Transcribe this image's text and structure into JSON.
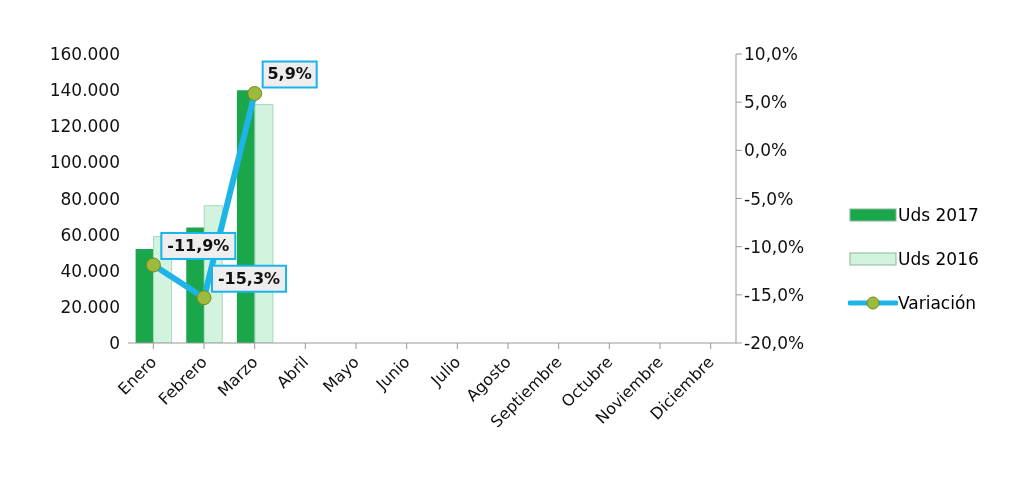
{
  "chart_data": {
    "type": "bar",
    "categories": [
      "Enero",
      "Febrero",
      "Marzo",
      "Abril",
      "Mayo",
      "Junio",
      "Julio",
      "Agosto",
      "Septiembre",
      "Octubre",
      "Noviembre",
      "Diciembre"
    ],
    "series": [
      {
        "name": "Uds 2017",
        "color": "#1aa64a",
        "values": [
          52000,
          64000,
          140000,
          null,
          null,
          null,
          null,
          null,
          null,
          null,
          null,
          null
        ]
      },
      {
        "name": "Uds 2016",
        "color": "#d2f3de",
        "values": [
          59000,
          76000,
          132000,
          null,
          null,
          null,
          null,
          null,
          null,
          null,
          null,
          null
        ]
      },
      {
        "name": "Variación",
        "type": "line",
        "axis": "y2",
        "color": "#1fb4e8",
        "marker": "circle",
        "values": [
          -11.9,
          -15.3,
          5.9,
          null,
          null,
          null,
          null,
          null,
          null,
          null,
          null,
          null
        ],
        "value_labels": [
          "-11,9%",
          "-15,3%",
          "5,9%",
          null,
          null,
          null,
          null,
          null,
          null,
          null,
          null,
          null
        ]
      }
    ],
    "ylim": [
      0,
      160000
    ],
    "yticks": [
      0,
      {
        "value": 20000,
        "label": "20.000"
      },
      {
        "value": 40000,
        "label": "40.000"
      },
      {
        "value": 60000,
        "label": "60.000"
      },
      {
        "value": 80000,
        "label": "80.000"
      },
      {
        "value": 100000,
        "label": "100.000"
      },
      {
        "value": 120000,
        "label": "120.000"
      },
      {
        "value": 140000,
        "label": "140.000"
      },
      {
        "value": 160000,
        "label": "160.000"
      }
    ],
    "y2lim": [
      -20,
      10
    ],
    "y2ticks": [
      {
        "value": -20,
        "label": "-20,0%"
      },
      {
        "value": -15,
        "label": "-15,0%"
      },
      {
        "value": -10,
        "label": "-10,0%"
      },
      {
        "value": -5,
        "label": "-5,0%"
      },
      {
        "value": 0,
        "label": "0,0%"
      },
      {
        "value": 5,
        "label": "5,0%"
      },
      {
        "value": 10,
        "label": "10,0%"
      }
    ],
    "grid": false,
    "legend": "right"
  }
}
